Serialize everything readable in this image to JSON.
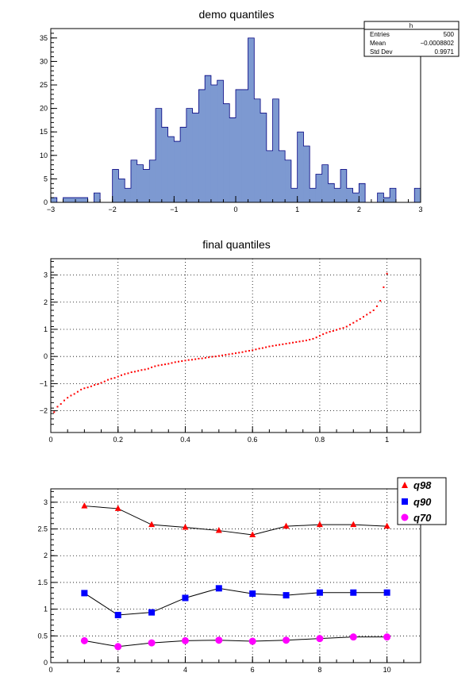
{
  "chart_data": [
    {
      "type": "bar",
      "title": "demo quantiles",
      "xlabel": "",
      "ylabel": "",
      "xlim": [
        -3,
        3
      ],
      "ylim": [
        0,
        37
      ],
      "grid": false,
      "bin_edges_range": [
        -3,
        3
      ],
      "nbins": 60,
      "values": [
        1,
        0,
        1,
        1,
        1,
        1,
        0,
        2,
        0,
        0,
        7,
        5,
        3,
        9,
        8,
        7,
        9,
        20,
        16,
        14,
        13,
        16,
        20,
        19,
        24,
        27,
        25,
        26,
        21,
        18,
        24,
        24,
        35,
        22,
        19,
        11,
        22,
        11,
        9,
        3,
        15,
        12,
        3,
        6,
        8,
        4,
        3,
        7,
        3,
        2,
        4,
        0,
        0,
        2,
        1,
        3,
        0,
        0,
        0,
        3
      ],
      "x_ticks": [
        "−3",
        "−2",
        "−1",
        "0",
        "1",
        "2",
        "3"
      ],
      "y_ticks": [
        "0",
        "5",
        "10",
        "15",
        "20",
        "25",
        "30",
        "35"
      ],
      "fill_color": "#7d99d1",
      "stats_box": {
        "title": "h",
        "rows": [
          {
            "label": "Entries",
            "value": "500"
          },
          {
            "label": "Mean",
            "value": "−0.0008802"
          },
          {
            "label": "Std Dev",
            "value": "0.9971"
          }
        ]
      }
    },
    {
      "type": "scatter",
      "title": "final quantiles",
      "xlabel": "",
      "ylabel": "",
      "xlim": [
        0,
        1.1
      ],
      "ylim": [
        -2.8,
        3.6
      ],
      "grid": true,
      "x_ticks": [
        "0",
        "0.2",
        "0.4",
        "0.6",
        "0.8",
        "1"
      ],
      "y_ticks": [
        "−2",
        "−1",
        "0",
        "1",
        "2",
        "3"
      ],
      "marker_color": "#ff0000",
      "x": [
        0.01,
        0.02,
        0.03,
        0.04,
        0.05,
        0.06,
        0.07,
        0.08,
        0.09,
        0.1,
        0.11,
        0.12,
        0.13,
        0.14,
        0.15,
        0.16,
        0.17,
        0.18,
        0.19,
        0.2,
        0.21,
        0.22,
        0.23,
        0.24,
        0.25,
        0.26,
        0.27,
        0.28,
        0.29,
        0.3,
        0.31,
        0.32,
        0.33,
        0.34,
        0.35,
        0.36,
        0.37,
        0.38,
        0.39,
        0.4,
        0.41,
        0.42,
        0.43,
        0.44,
        0.45,
        0.46,
        0.47,
        0.48,
        0.49,
        0.5,
        0.51,
        0.52,
        0.53,
        0.54,
        0.55,
        0.56,
        0.57,
        0.58,
        0.59,
        0.6,
        0.61,
        0.62,
        0.63,
        0.64,
        0.65,
        0.66,
        0.67,
        0.68,
        0.69,
        0.7,
        0.71,
        0.72,
        0.73,
        0.74,
        0.75,
        0.76,
        0.77,
        0.78,
        0.79,
        0.8,
        0.81,
        0.82,
        0.83,
        0.84,
        0.85,
        0.86,
        0.87,
        0.88,
        0.89,
        0.9,
        0.91,
        0.92,
        0.93,
        0.94,
        0.95,
        0.96,
        0.97,
        0.98,
        0.99,
        1.0
      ],
      "y": [
        -2.05,
        -1.85,
        -1.75,
        -1.62,
        -1.52,
        -1.44,
        -1.38,
        -1.3,
        -1.22,
        -1.17,
        -1.14,
        -1.1,
        -1.05,
        -1.02,
        -0.97,
        -0.92,
        -0.86,
        -0.82,
        -0.79,
        -0.74,
        -0.69,
        -0.65,
        -0.62,
        -0.58,
        -0.56,
        -0.53,
        -0.5,
        -0.48,
        -0.45,
        -0.4,
        -0.36,
        -0.33,
        -0.31,
        -0.29,
        -0.27,
        -0.24,
        -0.21,
        -0.19,
        -0.17,
        -0.15,
        -0.13,
        -0.12,
        -0.1,
        -0.08,
        -0.07,
        -0.05,
        -0.03,
        -0.01,
        0.0,
        0.02,
        0.04,
        0.06,
        0.08,
        0.1,
        0.12,
        0.14,
        0.16,
        0.19,
        0.21,
        0.23,
        0.26,
        0.29,
        0.31,
        0.34,
        0.37,
        0.39,
        0.41,
        0.43,
        0.45,
        0.47,
        0.49,
        0.51,
        0.53,
        0.55,
        0.57,
        0.59,
        0.62,
        0.65,
        0.7,
        0.76,
        0.82,
        0.87,
        0.91,
        0.94,
        0.98,
        1.02,
        1.05,
        1.1,
        1.17,
        1.24,
        1.31,
        1.38,
        1.46,
        1.54,
        1.62,
        1.7,
        1.85,
        2.05,
        2.55,
        3.05
      ]
    },
    {
      "type": "line",
      "title": "",
      "xlabel": "",
      "ylabel": "",
      "xlim": [
        0,
        11
      ],
      "ylim": [
        0,
        3.25
      ],
      "grid": true,
      "legend_position": "top-right",
      "x_ticks": [
        "0",
        "2",
        "4",
        "6",
        "8",
        "10"
      ],
      "y_ticks": [
        "0",
        "0.5",
        "1",
        "1.5",
        "2",
        "2.5",
        "3"
      ],
      "x": [
        1,
        2,
        3,
        4,
        5,
        6,
        7,
        8,
        9,
        10
      ],
      "series": [
        {
          "name": "q98",
          "marker": "triangle",
          "color": "#ff0000",
          "values": [
            2.93,
            2.88,
            2.58,
            2.53,
            2.47,
            2.39,
            2.55,
            2.58,
            2.58,
            2.55
          ]
        },
        {
          "name": "q90",
          "marker": "square",
          "color": "#0000ff",
          "values": [
            1.3,
            0.89,
            0.94,
            1.21,
            1.39,
            1.29,
            1.26,
            1.31,
            1.31,
            1.31
          ]
        },
        {
          "name": "q70",
          "marker": "circle",
          "color": "#ff00ff",
          "values": [
            0.41,
            0.3,
            0.37,
            0.41,
            0.42,
            0.4,
            0.42,
            0.45,
            0.48,
            0.48
          ]
        }
      ]
    }
  ]
}
